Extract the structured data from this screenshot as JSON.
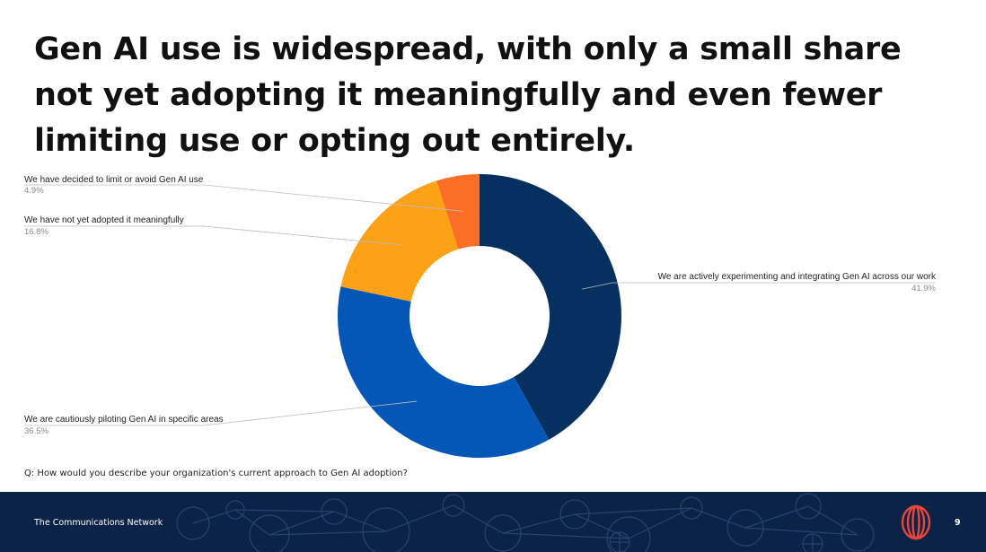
{
  "slide": {
    "title": "Gen AI use is widespread, with only a small share not yet adopting it meaningfully and even fewer limiting use or opting out entirely.",
    "question": "Q: How would you describe your organization's current approach to Gen AI adoption?"
  },
  "footer": {
    "organization": "The Communications Network",
    "page_number": "9",
    "background_color": "#0b2346",
    "logo_color": "#e8473a",
    "logo_icon": "concentric-rings-logo"
  },
  "chart_data": {
    "type": "pie",
    "donut": true,
    "title": "",
    "slices": [
      {
        "label": "We are actively experimenting and integrating Gen AI across our work",
        "value": 41.9,
        "value_label": "41.9%",
        "color": "#05305f"
      },
      {
        "label": "We are cautiously piloting Gen AI in specific areas",
        "value": 36.5,
        "value_label": "36.5%",
        "color": "#0457b7"
      },
      {
        "label": "We have not yet adopted it meaningfully",
        "value": 16.8,
        "value_label": "16.8%",
        "color": "#fda117"
      },
      {
        "label": "We have decided to limit or avoid Gen AI use",
        "value": 4.9,
        "value_label": "4.9%",
        "color": "#fc6d26"
      }
    ],
    "start_angle": "12 o'clock",
    "direction": "clockwise",
    "legend": "none"
  }
}
